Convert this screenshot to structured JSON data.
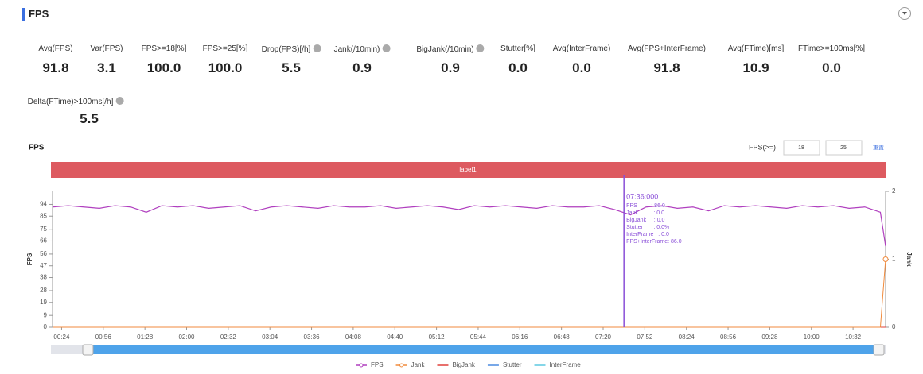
{
  "header": {
    "title": "FPS"
  },
  "stats": [
    {
      "label": "Avg(FPS)",
      "value": "91.8"
    },
    {
      "label": "Var(FPS)",
      "value": "3.1"
    },
    {
      "label": "FPS>=18[%]",
      "value": "100.0"
    },
    {
      "label": "FPS>=25[%]",
      "value": "100.0"
    },
    {
      "label": "Drop(FPS)[/h]",
      "value": "5.5",
      "help": true
    },
    {
      "label": "Jank(/10min)",
      "value": "0.9",
      "help": true
    },
    {
      "label": "BigJank(/10min)",
      "value": "0.9",
      "help": true
    },
    {
      "label": "Stutter[%]",
      "value": "0.0"
    },
    {
      "label": "Avg(InterFrame)",
      "value": "0.0"
    },
    {
      "label": "Avg(FPS+InterFrame)",
      "value": "91.8"
    },
    {
      "label": "Avg(FTime)[ms]",
      "value": "10.9"
    },
    {
      "label": "FTime>=100ms[%]",
      "value": "0.0"
    },
    {
      "label": "Delta(FTime)>100ms[/h]",
      "value": "5.5",
      "help": true
    }
  ],
  "chart_data": {
    "type": "line",
    "title": "FPS",
    "threshold_label": "FPS(>=)",
    "thresholds": [
      18,
      25
    ],
    "reset_label": "重置",
    "band_label": "label1",
    "ylabel": "FPS",
    "y2label": "Jank",
    "xlim": [
      17,
      657
    ],
    "xticks": [
      {
        "value": 24,
        "label": "00:24"
      },
      {
        "value": 56,
        "label": "00:56"
      },
      {
        "value": 88,
        "label": "01:28"
      },
      {
        "value": 120,
        "label": "02:00"
      },
      {
        "value": 152,
        "label": "02:32"
      },
      {
        "value": 184,
        "label": "03:04"
      },
      {
        "value": 216,
        "label": "03:36"
      },
      {
        "value": 248,
        "label": "04:08"
      },
      {
        "value": 280,
        "label": "04:40"
      },
      {
        "value": 312,
        "label": "05:12"
      },
      {
        "value": 344,
        "label": "05:44"
      },
      {
        "value": 376,
        "label": "06:16"
      },
      {
        "value": 408,
        "label": "06:48"
      },
      {
        "value": 440,
        "label": "07:20"
      },
      {
        "value": 472,
        "label": "07:52"
      },
      {
        "value": 504,
        "label": "08:24"
      },
      {
        "value": 536,
        "label": "08:56"
      },
      {
        "value": 568,
        "label": "09:28"
      },
      {
        "value": 600,
        "label": "10:00"
      },
      {
        "value": 632,
        "label": "10:32"
      }
    ],
    "ylim": [
      0,
      104
    ],
    "yticks": [
      0,
      9,
      19,
      28,
      38,
      47,
      56,
      66,
      75,
      85,
      94
    ],
    "y2lim": [
      0,
      2
    ],
    "y2ticks": [
      0,
      1,
      2
    ],
    "x": [
      17,
      29,
      41,
      53,
      65,
      77,
      89,
      101,
      113,
      125,
      137,
      149,
      161,
      173,
      185,
      197,
      209,
      221,
      233,
      245,
      257,
      269,
      281,
      293,
      305,
      317,
      329,
      341,
      353,
      365,
      377,
      389,
      401,
      413,
      425,
      437,
      449,
      461,
      473,
      485,
      497,
      509,
      521,
      533,
      545,
      557,
      569,
      581,
      593,
      605,
      617,
      629,
      641,
      653,
      657
    ],
    "series": [
      {
        "name": "FPS",
        "color": "#b03fbf",
        "values": [
          92,
          93,
          92,
          91,
          93,
          92,
          88,
          93,
          92,
          93,
          91,
          92,
          93,
          89,
          92,
          93,
          92,
          91,
          93,
          92,
          92,
          93,
          91,
          92,
          93,
          92,
          90,
          93,
          92,
          93,
          92,
          91,
          93,
          92,
          92,
          93,
          90,
          86,
          92,
          93,
          91,
          92,
          89,
          93,
          92,
          93,
          92,
          91,
          93,
          92,
          93,
          91,
          92,
          88,
          62
        ]
      },
      {
        "name": "Jank",
        "color": "#f08a3c",
        "axis": "y2",
        "values": [
          0,
          0,
          0,
          0,
          0,
          0,
          0,
          0,
          0,
          0,
          0,
          0,
          0,
          0,
          0,
          0,
          0,
          0,
          0,
          0,
          0,
          0,
          0,
          0,
          0,
          0,
          0,
          0,
          0,
          0,
          0,
          0,
          0,
          0,
          0,
          0,
          0,
          0,
          0,
          0,
          0,
          0,
          0,
          0,
          0,
          0,
          0,
          0,
          0,
          0,
          0,
          0,
          0,
          0,
          1
        ]
      },
      {
        "name": "BigJank",
        "color": "#e0403a",
        "axis": "y2",
        "values": [
          0,
          0,
          0,
          0,
          0,
          0,
          0,
          0,
          0,
          0,
          0,
          0,
          0,
          0,
          0,
          0,
          0,
          0,
          0,
          0,
          0,
          0,
          0,
          0,
          0,
          0,
          0,
          0,
          0,
          0,
          0,
          0,
          0,
          0,
          0,
          0,
          0,
          0,
          0,
          0,
          0,
          0,
          0,
          0,
          0,
          0,
          0,
          0,
          0,
          0,
          0,
          0,
          0,
          0,
          0
        ]
      },
      {
        "name": "Stutter",
        "color": "#4a8ae0",
        "axis": "y2",
        "values": [
          0,
          0,
          0,
          0,
          0,
          0,
          0,
          0,
          0,
          0,
          0,
          0,
          0,
          0,
          0,
          0,
          0,
          0,
          0,
          0,
          0,
          0,
          0,
          0,
          0,
          0,
          0,
          0,
          0,
          0,
          0,
          0,
          0,
          0,
          0,
          0,
          0,
          0,
          0,
          0,
          0,
          0,
          0,
          0,
          0,
          0,
          0,
          0,
          0,
          0,
          0,
          0,
          0,
          0,
          0
        ]
      },
      {
        "name": "InterFrame",
        "color": "#5cc8e0",
        "axis": "y2",
        "values": [
          0,
          0,
          0,
          0,
          0,
          0,
          0,
          0,
          0,
          0,
          0,
          0,
          0,
          0,
          0,
          0,
          0,
          0,
          0,
          0,
          0,
          0,
          0,
          0,
          0,
          0,
          0,
          0,
          0,
          0,
          0,
          0,
          0,
          0,
          0,
          0,
          0,
          0,
          0,
          0,
          0,
          0,
          0,
          0,
          0,
          0,
          0,
          0,
          0,
          0,
          0,
          0,
          0,
          0,
          0
        ]
      }
    ],
    "cursor": {
      "x": 456,
      "time": "07:36:000",
      "lines": [
        "FPS         : 86.0",
        "Jank          : 0.0",
        "BigJank     : 0.0",
        "Stutter       : 0.0%",
        "InterFrame   : 0.0",
        "FPS+InterFrame: 86.0"
      ]
    }
  }
}
